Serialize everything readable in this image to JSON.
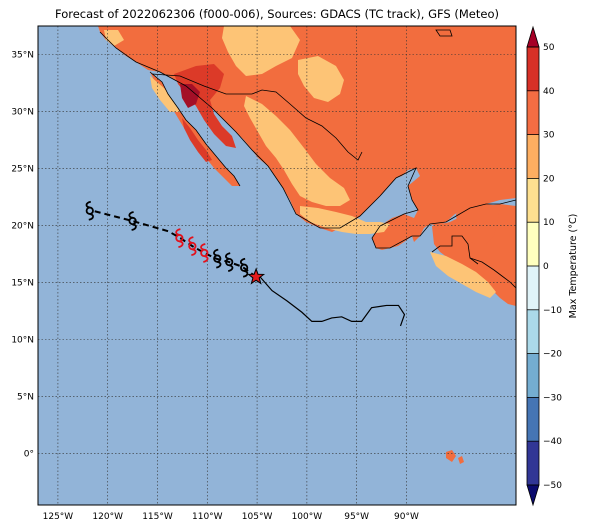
{
  "title": "Forecast of 2022062306 (f000-006), Sources: GDACS (TC track), GFS (Meteo)",
  "map": {
    "lon_range": [
      -127,
      -79
    ],
    "lat_range": [
      -4.5,
      37.5
    ],
    "lon_ticks": [
      -125,
      -120,
      -115,
      -110,
      -105,
      -100,
      -95,
      -90
    ],
    "lat_ticks": [
      0,
      5,
      10,
      15,
      20,
      25,
      30,
      35
    ],
    "lon_tick_labels": [
      "125°W",
      "120°W",
      "115°W",
      "110°W",
      "105°W",
      "100°W",
      "95°W",
      "90°W"
    ],
    "lat_tick_labels": [
      "0°",
      "5°N",
      "10°N",
      "15°N",
      "20°N",
      "25°N",
      "30°N",
      "35°N"
    ],
    "gridlines": true,
    "ocean_color": "#92b4d8",
    "land_colors": {
      "10-20": "#fdc476",
      "20-30": "#f26d3e",
      "30-40": "#dc3a28",
      "40-50": "#a40f27"
    }
  },
  "track": {
    "past_track": [
      [
        -104.8,
        15.6
      ],
      [
        -103.5,
        14.3
      ],
      [
        -102,
        13.4
      ],
      [
        -100.5,
        12.4
      ],
      [
        -99.5,
        11.6
      ],
      [
        -98.5,
        11.6
      ],
      [
        -97.5,
        11.9
      ],
      [
        -96.5,
        12.0
      ],
      [
        -95.5,
        11.6
      ],
      [
        -94.5,
        11.6
      ],
      [
        -93.5,
        12.8
      ],
      [
        -92,
        13.0
      ],
      [
        -90.8,
        13.0
      ],
      [
        -90.2,
        12.2
      ],
      [
        -90.6,
        11.2
      ]
    ],
    "forecast_track": [
      [
        -105.1,
        15.5
      ],
      [
        -106.5,
        16.4
      ],
      [
        -107.8,
        16.8
      ],
      [
        -109.1,
        17.1
      ],
      [
        -110.3,
        17.6
      ],
      [
        -111.5,
        18.2
      ],
      [
        -112.7,
        18.9
      ],
      [
        -113.9,
        19.5
      ],
      [
        -117.5,
        20.4
      ],
      [
        -121.5,
        21.3
      ]
    ],
    "current_position": [
      -105.1,
      15.5
    ],
    "symbols": [
      {
        "lon": -106.3,
        "lat": 16.3,
        "color": "black"
      },
      {
        "lon": -107.8,
        "lat": 16.8,
        "color": "black"
      },
      {
        "lon": -109.0,
        "lat": 17.1,
        "color": "black"
      },
      {
        "lon": -110.3,
        "lat": 17.6,
        "color": "red"
      },
      {
        "lon": -111.5,
        "lat": 18.2,
        "color": "red"
      },
      {
        "lon": -112.8,
        "lat": 18.9,
        "color": "red"
      },
      {
        "lon": -117.5,
        "lat": 20.4,
        "color": "black"
      },
      {
        "lon": -121.8,
        "lat": 21.3,
        "color": "black"
      }
    ]
  },
  "colorbar": {
    "label": "Max Temperature (°C)",
    "levels": [
      -50,
      -40,
      -30,
      -20,
      -10,
      0,
      10,
      20,
      30,
      40,
      50
    ],
    "tick_labels": [
      "−50",
      "−40",
      "−30",
      "−20",
      "−10",
      "0",
      "10",
      "20",
      "30",
      "40",
      "50"
    ],
    "colors": [
      "#313695",
      "#4575b4",
      "#74add1",
      "#abd9e9",
      "#e0f3f8",
      "#ffffbf",
      "#fee090",
      "#fdae61",
      "#f46d43",
      "#d73027"
    ],
    "under_color": "#0b0b6e",
    "over_color": "#a50026"
  }
}
